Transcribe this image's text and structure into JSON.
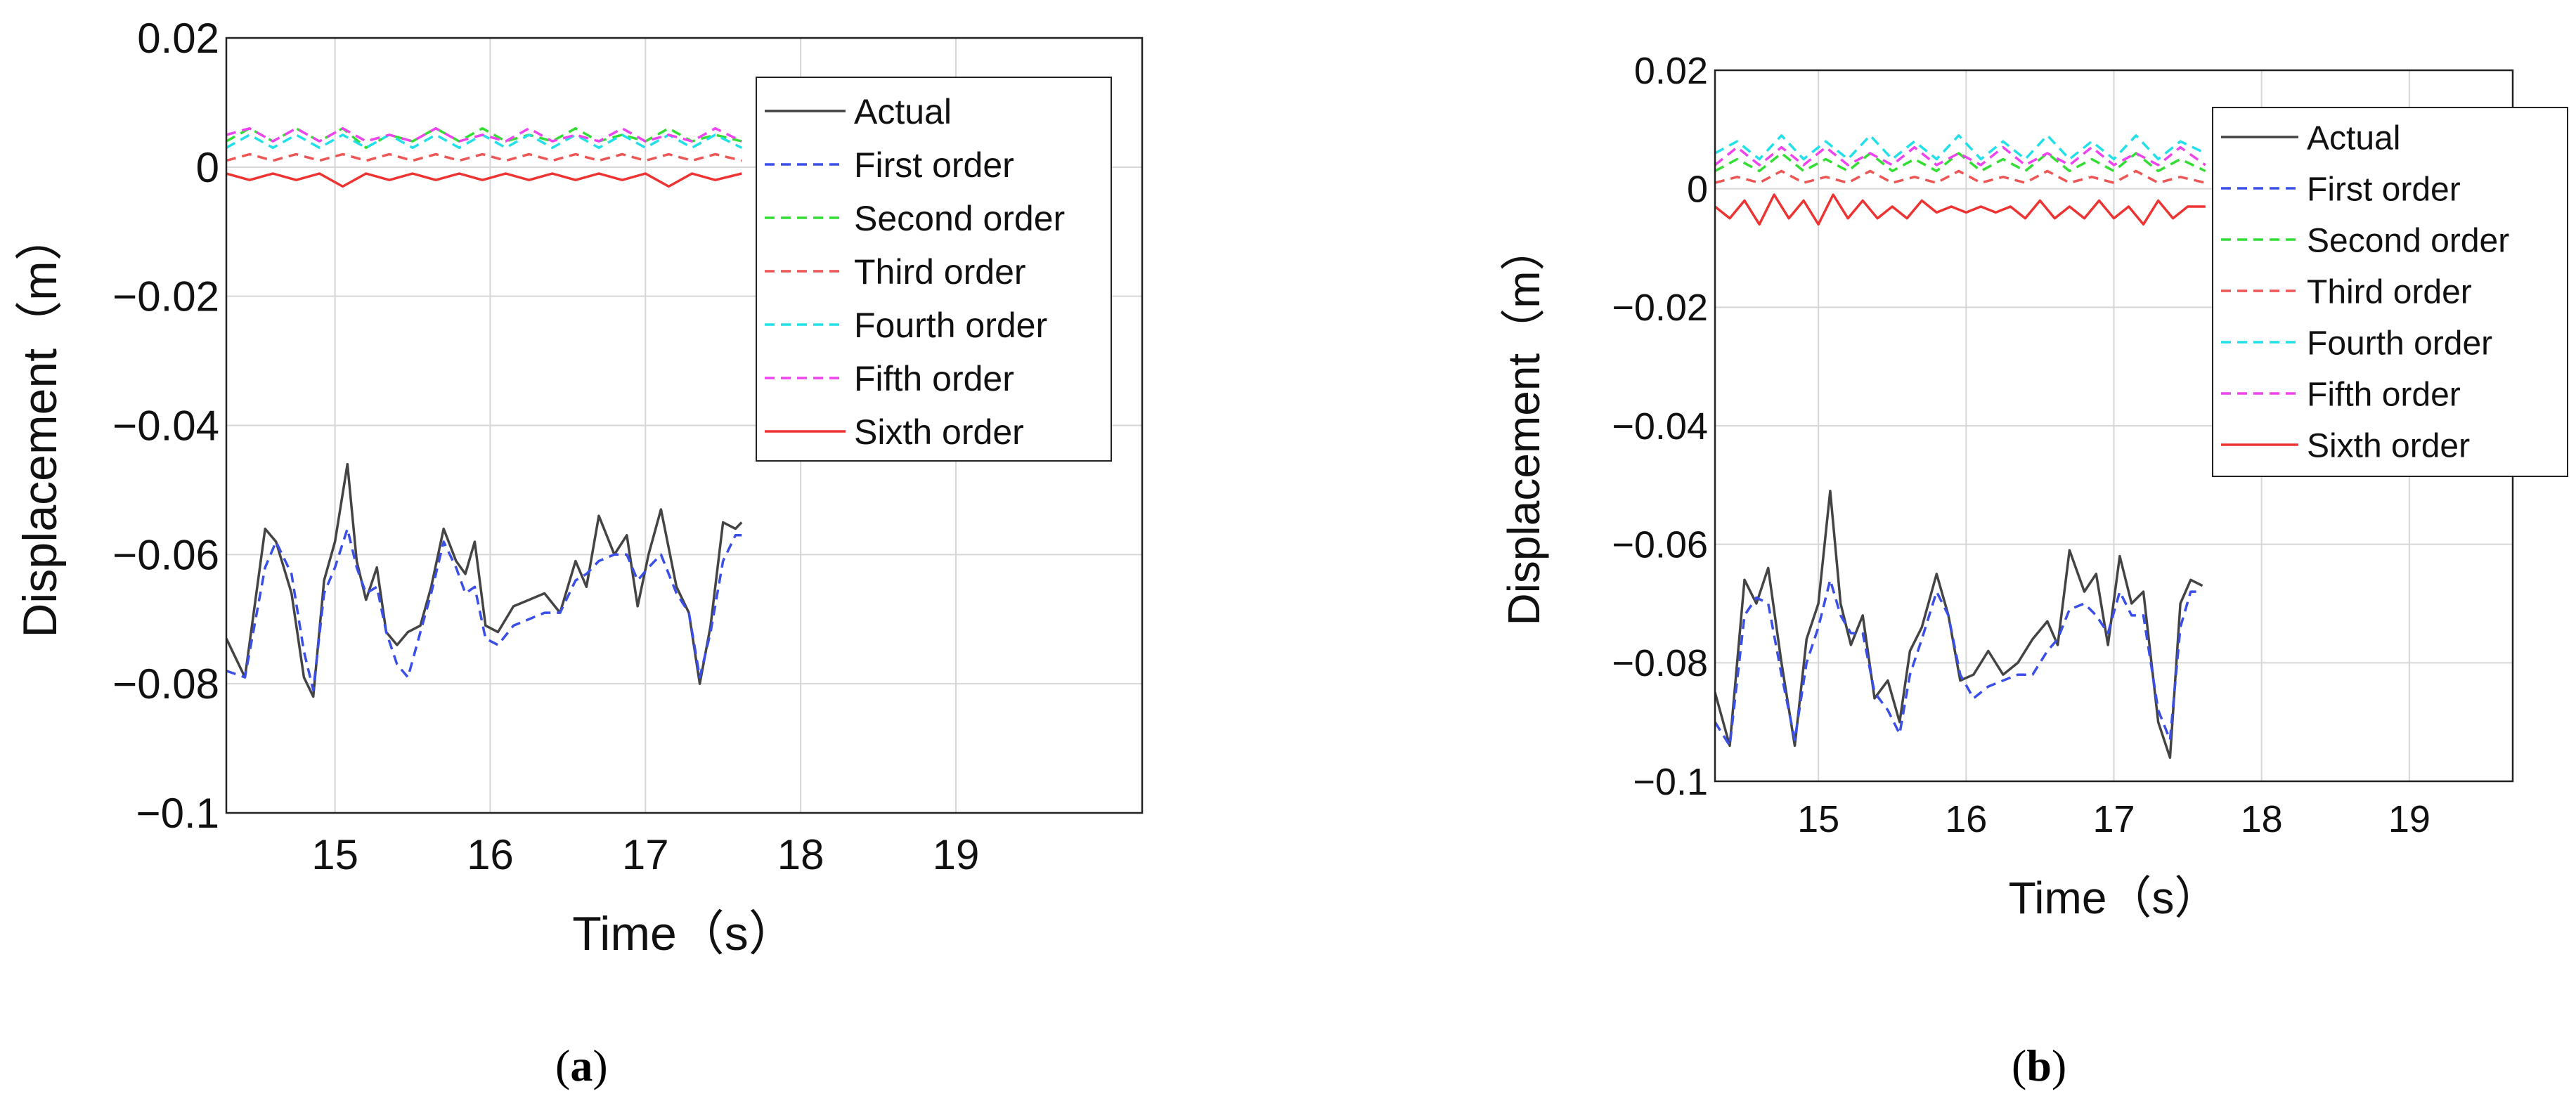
{
  "chart_data": [
    {
      "type": "line",
      "panel_label": "a",
      "xlabel": "Time（s）",
      "ylabel": "Displacement（m）",
      "xlim": [
        14.3,
        20.2
      ],
      "ylim": [
        -0.1,
        0.02
      ],
      "xticks": [
        "15",
        "16",
        "17",
        "18",
        "19"
      ],
      "yticks": [
        "0.02",
        "0",
        "−0.02",
        "−0.04",
        "−0.06",
        "−0.08",
        "−0.1"
      ],
      "x_end": 17.62,
      "legend": [
        "Actual",
        "First order",
        "Second order",
        "Third order",
        "Fourth order",
        "Fifth order",
        "Sixth order"
      ],
      "series": [
        {
          "name": "Actual",
          "color": "#444444",
          "style": "solid",
          "x": [
            14.3,
            14.42,
            14.55,
            14.62,
            14.72,
            14.8,
            14.86,
            14.93,
            15.0,
            15.08,
            15.14,
            15.2,
            15.27,
            15.33,
            15.4,
            15.47,
            15.55,
            15.62,
            15.7,
            15.78,
            15.84,
            15.9,
            15.97,
            16.05,
            16.15,
            16.25,
            16.35,
            16.45,
            16.55,
            16.62,
            16.7,
            16.8,
            16.88,
            16.95,
            17.02,
            17.1,
            17.2,
            17.28,
            17.35,
            17.42,
            17.5,
            17.58,
            17.62
          ],
          "y": [
            -0.073,
            -0.079,
            -0.056,
            -0.058,
            -0.066,
            -0.079,
            -0.082,
            -0.064,
            -0.058,
            -0.046,
            -0.061,
            -0.067,
            -0.062,
            -0.072,
            -0.074,
            -0.072,
            -0.071,
            -0.065,
            -0.056,
            -0.061,
            -0.063,
            -0.058,
            -0.071,
            -0.072,
            -0.068,
            -0.067,
            -0.066,
            -0.069,
            -0.061,
            -0.065,
            -0.054,
            -0.06,
            -0.057,
            -0.068,
            -0.06,
            -0.053,
            -0.065,
            -0.069,
            -0.08,
            -0.071,
            -0.055,
            -0.056,
            -0.055
          ]
        },
        {
          "name": "First order",
          "color": "#3a4ee8",
          "style": "dashed",
          "x": [
            14.3,
            14.42,
            14.55,
            14.62,
            14.72,
            14.8,
            14.86,
            14.93,
            15.0,
            15.08,
            15.14,
            15.2,
            15.27,
            15.33,
            15.4,
            15.47,
            15.55,
            15.62,
            15.7,
            15.78,
            15.84,
            15.9,
            15.97,
            16.05,
            16.15,
            16.25,
            16.35,
            16.45,
            16.55,
            16.62,
            16.7,
            16.8,
            16.88,
            16.95,
            17.02,
            17.1,
            17.2,
            17.28,
            17.35,
            17.42,
            17.5,
            17.58,
            17.62
          ],
          "y": [
            -0.078,
            -0.079,
            -0.062,
            -0.058,
            -0.063,
            -0.075,
            -0.081,
            -0.066,
            -0.062,
            -0.056,
            -0.062,
            -0.066,
            -0.065,
            -0.072,
            -0.077,
            -0.079,
            -0.072,
            -0.066,
            -0.058,
            -0.062,
            -0.066,
            -0.065,
            -0.073,
            -0.074,
            -0.071,
            -0.07,
            -0.069,
            -0.069,
            -0.064,
            -0.063,
            -0.061,
            -0.06,
            -0.06,
            -0.064,
            -0.062,
            -0.06,
            -0.066,
            -0.069,
            -0.079,
            -0.072,
            -0.061,
            -0.057,
            -0.057
          ]
        },
        {
          "name": "Second order",
          "color": "#33dd33",
          "style": "dashed",
          "x": [
            14.3,
            14.45,
            14.6,
            14.75,
            14.9,
            15.05,
            15.2,
            15.35,
            15.5,
            15.65,
            15.8,
            15.95,
            16.1,
            16.25,
            16.4,
            16.55,
            16.7,
            16.85,
            17.0,
            17.15,
            17.3,
            17.45,
            17.62
          ],
          "y": [
            0.004,
            0.006,
            0.004,
            0.006,
            0.004,
            0.006,
            0.003,
            0.005,
            0.004,
            0.006,
            0.004,
            0.006,
            0.004,
            0.005,
            0.004,
            0.006,
            0.004,
            0.005,
            0.004,
            0.006,
            0.004,
            0.005,
            0.004
          ]
        },
        {
          "name": "Third order",
          "color": "#ee5555",
          "style": "dashed",
          "x": [
            14.3,
            14.45,
            14.6,
            14.75,
            14.9,
            15.05,
            15.2,
            15.35,
            15.5,
            15.65,
            15.8,
            15.95,
            16.1,
            16.25,
            16.4,
            16.55,
            16.7,
            16.85,
            17.0,
            17.15,
            17.3,
            17.45,
            17.62
          ],
          "y": [
            0.001,
            0.002,
            0.001,
            0.002,
            0.001,
            0.002,
            0.001,
            0.002,
            0.001,
            0.002,
            0.001,
            0.002,
            0.001,
            0.002,
            0.001,
            0.002,
            0.001,
            0.002,
            0.001,
            0.002,
            0.001,
            0.002,
            0.001
          ]
        },
        {
          "name": "Fourth order",
          "color": "#22e0e8",
          "style": "dashed",
          "x": [
            14.3,
            14.45,
            14.6,
            14.75,
            14.9,
            15.05,
            15.2,
            15.35,
            15.5,
            15.65,
            15.8,
            15.95,
            16.1,
            16.25,
            16.4,
            16.55,
            16.7,
            16.85,
            17.0,
            17.15,
            17.3,
            17.45,
            17.62
          ],
          "y": [
            0.003,
            0.005,
            0.003,
            0.005,
            0.003,
            0.005,
            0.003,
            0.005,
            0.003,
            0.005,
            0.003,
            0.005,
            0.003,
            0.005,
            0.003,
            0.005,
            0.003,
            0.005,
            0.003,
            0.005,
            0.003,
            0.005,
            0.003
          ]
        },
        {
          "name": "Fifth order",
          "color": "#ee44ee",
          "style": "dashed",
          "x": [
            14.3,
            14.45,
            14.6,
            14.75,
            14.9,
            15.05,
            15.2,
            15.35,
            15.5,
            15.65,
            15.8,
            15.95,
            16.1,
            16.25,
            16.4,
            16.55,
            16.7,
            16.85,
            17.0,
            17.15,
            17.3,
            17.45,
            17.62
          ],
          "y": [
            0.005,
            0.006,
            0.004,
            0.006,
            0.004,
            0.006,
            0.004,
            0.005,
            0.004,
            0.006,
            0.004,
            0.005,
            0.004,
            0.006,
            0.004,
            0.005,
            0.004,
            0.006,
            0.004,
            0.005,
            0.004,
            0.006,
            0.004
          ]
        },
        {
          "name": "Sixth order",
          "color": "#ee3333",
          "style": "solid",
          "x": [
            14.3,
            14.45,
            14.6,
            14.75,
            14.9,
            15.05,
            15.2,
            15.35,
            15.5,
            15.65,
            15.8,
            15.95,
            16.1,
            16.25,
            16.4,
            16.55,
            16.7,
            16.85,
            17.0,
            17.15,
            17.3,
            17.45,
            17.62
          ],
          "y": [
            -0.001,
            -0.002,
            -0.001,
            -0.002,
            -0.001,
            -0.003,
            -0.001,
            -0.002,
            -0.001,
            -0.002,
            -0.001,
            -0.002,
            -0.001,
            -0.002,
            -0.001,
            -0.002,
            -0.001,
            -0.002,
            -0.001,
            -0.003,
            -0.001,
            -0.002,
            -0.001
          ]
        }
      ]
    },
    {
      "type": "line",
      "panel_label": "b",
      "xlabel": "Time（s）",
      "ylabel": "Displacement（m）",
      "xlim": [
        14.3,
        19.7
      ],
      "ylim": [
        -0.1,
        0.02
      ],
      "xticks": [
        "15",
        "16",
        "17",
        "18",
        "19"
      ],
      "yticks": [
        "0.02",
        "0",
        "−0.02",
        "−0.04",
        "−0.06",
        "−0.08",
        "−0.1"
      ],
      "x_end": 17.62,
      "legend": [
        "Actual",
        "First order",
        "Second order",
        "Third order",
        "Fourth order",
        "Fifth order",
        "Sixth order"
      ],
      "series": [
        {
          "name": "Actual",
          "color": "#444444",
          "style": "solid",
          "x": [
            14.3,
            14.4,
            14.5,
            14.58,
            14.66,
            14.75,
            14.84,
            14.92,
            15.0,
            15.08,
            15.15,
            15.22,
            15.3,
            15.38,
            15.47,
            15.55,
            15.62,
            15.7,
            15.8,
            15.88,
            15.96,
            16.05,
            16.15,
            16.25,
            16.35,
            16.45,
            16.55,
            16.62,
            16.7,
            16.8,
            16.88,
            16.96,
            17.04,
            17.12,
            17.2,
            17.3,
            17.38,
            17.45,
            17.52,
            17.6
          ],
          "y": [
            -0.085,
            -0.094,
            -0.066,
            -0.07,
            -0.064,
            -0.08,
            -0.094,
            -0.076,
            -0.07,
            -0.051,
            -0.07,
            -0.077,
            -0.072,
            -0.086,
            -0.083,
            -0.09,
            -0.078,
            -0.074,
            -0.065,
            -0.072,
            -0.083,
            -0.082,
            -0.078,
            -0.082,
            -0.08,
            -0.076,
            -0.073,
            -0.077,
            -0.061,
            -0.068,
            -0.065,
            -0.077,
            -0.062,
            -0.07,
            -0.068,
            -0.09,
            -0.096,
            -0.07,
            -0.066,
            -0.067
          ]
        },
        {
          "name": "First order",
          "color": "#3a4ee8",
          "style": "dashed",
          "x": [
            14.3,
            14.4,
            14.5,
            14.58,
            14.66,
            14.75,
            14.84,
            14.92,
            15.0,
            15.08,
            15.15,
            15.22,
            15.3,
            15.38,
            15.47,
            15.55,
            15.62,
            15.7,
            15.8,
            15.88,
            15.96,
            16.05,
            16.15,
            16.25,
            16.35,
            16.45,
            16.55,
            16.62,
            16.7,
            16.8,
            16.88,
            16.96,
            17.04,
            17.12,
            17.2,
            17.3,
            17.38,
            17.45,
            17.52,
            17.6
          ],
          "y": [
            -0.09,
            -0.094,
            -0.072,
            -0.069,
            -0.07,
            -0.082,
            -0.093,
            -0.08,
            -0.074,
            -0.066,
            -0.072,
            -0.075,
            -0.075,
            -0.085,
            -0.088,
            -0.092,
            -0.082,
            -0.076,
            -0.068,
            -0.072,
            -0.082,
            -0.086,
            -0.084,
            -0.083,
            -0.082,
            -0.082,
            -0.078,
            -0.076,
            -0.071,
            -0.07,
            -0.072,
            -0.075,
            -0.068,
            -0.072,
            -0.072,
            -0.088,
            -0.093,
            -0.074,
            -0.068,
            -0.068
          ]
        },
        {
          "name": "Second order",
          "color": "#33dd33",
          "style": "dashed",
          "x": [
            14.3,
            14.45,
            14.6,
            14.75,
            14.9,
            15.05,
            15.2,
            15.35,
            15.5,
            15.65,
            15.8,
            15.95,
            16.1,
            16.25,
            16.4,
            16.55,
            16.7,
            16.85,
            17.0,
            17.15,
            17.3,
            17.45,
            17.62
          ],
          "y": [
            0.003,
            0.005,
            0.003,
            0.006,
            0.003,
            0.005,
            0.003,
            0.006,
            0.003,
            0.005,
            0.003,
            0.006,
            0.003,
            0.005,
            0.003,
            0.006,
            0.003,
            0.005,
            0.003,
            0.006,
            0.003,
            0.005,
            0.003
          ]
        },
        {
          "name": "Third order",
          "color": "#ee5555",
          "style": "dashed",
          "x": [
            14.3,
            14.45,
            14.6,
            14.75,
            14.9,
            15.05,
            15.2,
            15.35,
            15.5,
            15.65,
            15.8,
            15.95,
            16.1,
            16.25,
            16.4,
            16.55,
            16.7,
            16.85,
            17.0,
            17.15,
            17.3,
            17.45,
            17.62
          ],
          "y": [
            0.001,
            0.002,
            0.001,
            0.003,
            0.001,
            0.002,
            0.001,
            0.003,
            0.001,
            0.002,
            0.001,
            0.003,
            0.001,
            0.002,
            0.001,
            0.003,
            0.001,
            0.002,
            0.001,
            0.003,
            0.001,
            0.002,
            0.001
          ]
        },
        {
          "name": "Fourth order",
          "color": "#22e0e8",
          "style": "dashed",
          "x": [
            14.3,
            14.45,
            14.6,
            14.75,
            14.9,
            15.05,
            15.2,
            15.35,
            15.5,
            15.65,
            15.8,
            15.95,
            16.1,
            16.25,
            16.4,
            16.55,
            16.7,
            16.85,
            17.0,
            17.15,
            17.3,
            17.45,
            17.62
          ],
          "y": [
            0.006,
            0.008,
            0.005,
            0.009,
            0.005,
            0.008,
            0.005,
            0.009,
            0.005,
            0.008,
            0.005,
            0.009,
            0.005,
            0.008,
            0.005,
            0.009,
            0.005,
            0.008,
            0.005,
            0.009,
            0.005,
            0.008,
            0.006
          ]
        },
        {
          "name": "Fifth order",
          "color": "#ee44ee",
          "style": "dashed",
          "x": [
            14.3,
            14.45,
            14.6,
            14.75,
            14.9,
            15.05,
            15.2,
            15.35,
            15.5,
            15.65,
            15.8,
            15.95,
            16.1,
            16.25,
            16.4,
            16.55,
            16.7,
            16.85,
            17.0,
            17.15,
            17.3,
            17.45,
            17.62
          ],
          "y": [
            0.004,
            0.007,
            0.004,
            0.007,
            0.004,
            0.007,
            0.004,
            0.006,
            0.004,
            0.007,
            0.004,
            0.006,
            0.004,
            0.007,
            0.004,
            0.006,
            0.004,
            0.007,
            0.004,
            0.006,
            0.004,
            0.007,
            0.004
          ]
        },
        {
          "name": "Sixth order",
          "color": "#ee3333",
          "style": "solid",
          "x": [
            14.3,
            14.4,
            14.5,
            14.6,
            14.7,
            14.8,
            14.9,
            15.0,
            15.1,
            15.2,
            15.3,
            15.4,
            15.5,
            15.6,
            15.7,
            15.8,
            15.9,
            16.0,
            16.1,
            16.2,
            16.3,
            16.4,
            16.5,
            16.6,
            16.7,
            16.8,
            16.9,
            17.0,
            17.1,
            17.2,
            17.3,
            17.4,
            17.5,
            17.62
          ],
          "y": [
            -0.003,
            -0.005,
            -0.002,
            -0.006,
            -0.001,
            -0.005,
            -0.002,
            -0.006,
            -0.001,
            -0.005,
            -0.002,
            -0.005,
            -0.003,
            -0.005,
            -0.002,
            -0.004,
            -0.003,
            -0.004,
            -0.003,
            -0.004,
            -0.003,
            -0.005,
            -0.002,
            -0.005,
            -0.003,
            -0.005,
            -0.002,
            -0.005,
            -0.003,
            -0.006,
            -0.002,
            -0.005,
            -0.003,
            -0.003
          ]
        }
      ]
    }
  ]
}
